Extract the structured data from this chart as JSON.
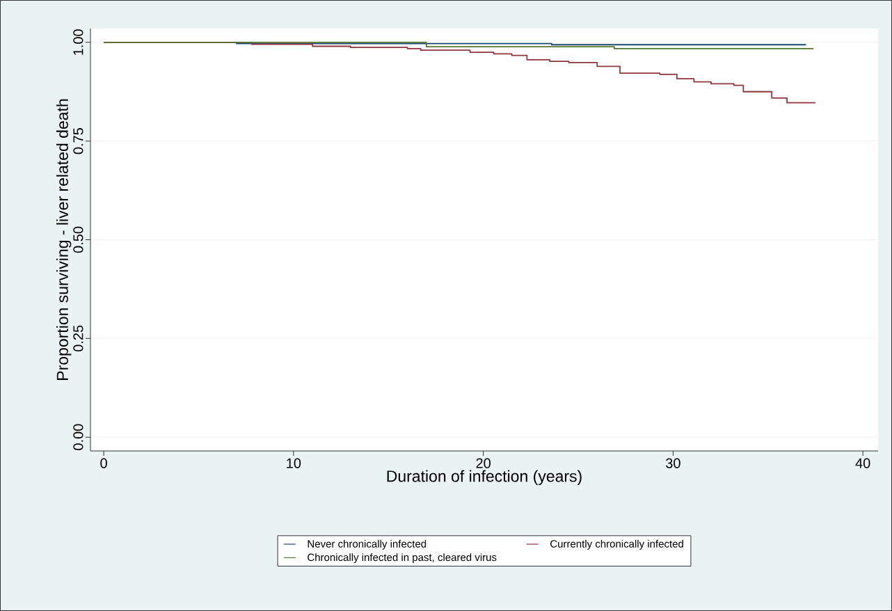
{
  "chart_data": {
    "type": "step",
    "xlabel": "Duration of infection (years)",
    "ylabel": "Proportion surviving - liver related death",
    "xlim": [
      -0.7,
      40.8
    ],
    "ylim": [
      -0.035,
      1.035
    ],
    "xticks": [
      0,
      10,
      20,
      30,
      40
    ],
    "yticks": [
      {
        "value": 0,
        "label": "0.00"
      },
      {
        "value": 0.25,
        "label": "0.25"
      },
      {
        "value": 0.5,
        "label": "0.50"
      },
      {
        "value": 0.75,
        "label": "0.75"
      },
      {
        "value": 1,
        "label": "1.00"
      }
    ],
    "grid": "y",
    "legend": "bottom",
    "marker": "none",
    "line_style": "solid",
    "series": [
      {
        "name": "Never chronically infected",
        "color": "#1a476f",
        "x": [
          0,
          7.0,
          23.6,
          37.0
        ],
        "values": [
          1.0,
          0.997,
          0.994,
          0.994
        ]
      },
      {
        "name": "Currently chronically infected",
        "color": "#90353b",
        "x": [
          0,
          7.8,
          11.0,
          13.0,
          16.0,
          16.7,
          19.3,
          20.55,
          21.5,
          22.3,
          23.5,
          24.5,
          26.0,
          27.2,
          29.3,
          30.2,
          31.1,
          32.0,
          33.2,
          33.7,
          35.2,
          36.0,
          37.5
        ],
        "values": [
          1.0,
          0.995,
          0.99,
          0.987,
          0.984,
          0.98,
          0.975,
          0.971,
          0.967,
          0.956,
          0.952,
          0.949,
          0.939,
          0.922,
          0.919,
          0.908,
          0.9,
          0.895,
          0.891,
          0.875,
          0.859,
          0.847,
          0.847
        ]
      },
      {
        "name": "Chronically infected in past, cleared virus",
        "color": "#55752f",
        "x": [
          0,
          17.0,
          26.9,
          37.4
        ],
        "values": [
          1.0,
          0.989,
          0.984,
          0.984
        ]
      }
    ]
  }
}
